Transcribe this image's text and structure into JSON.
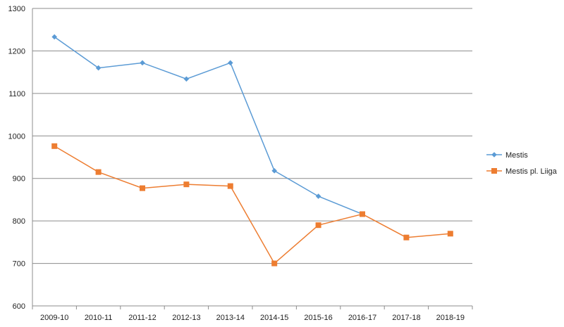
{
  "chart_data": {
    "type": "line",
    "title": "",
    "xlabel": "",
    "ylabel": "",
    "categories": [
      "2009-10",
      "2010-11",
      "2011-12",
      "2012-13",
      "2013-14",
      "2014-15",
      "2015-16",
      "2016-17",
      "2017-18",
      "2018-19"
    ],
    "ylim": [
      600,
      1300
    ],
    "yticks": [
      600,
      700,
      800,
      900,
      1000,
      1100,
      1200,
      1300
    ],
    "grid": true,
    "legend_position": "right",
    "series": [
      {
        "name": "Mestis",
        "values": [
          1233,
          1160,
          1172,
          1134,
          1172,
          918,
          858,
          816,
          null,
          null
        ],
        "color": "#5b9bd5",
        "marker": "diamond"
      },
      {
        "name": "Mestis pl. Liiga",
        "values": [
          976,
          915,
          877,
          886,
          882,
          700,
          790,
          816,
          761,
          770
        ],
        "color": "#ed7d31",
        "marker": "square"
      }
    ]
  }
}
